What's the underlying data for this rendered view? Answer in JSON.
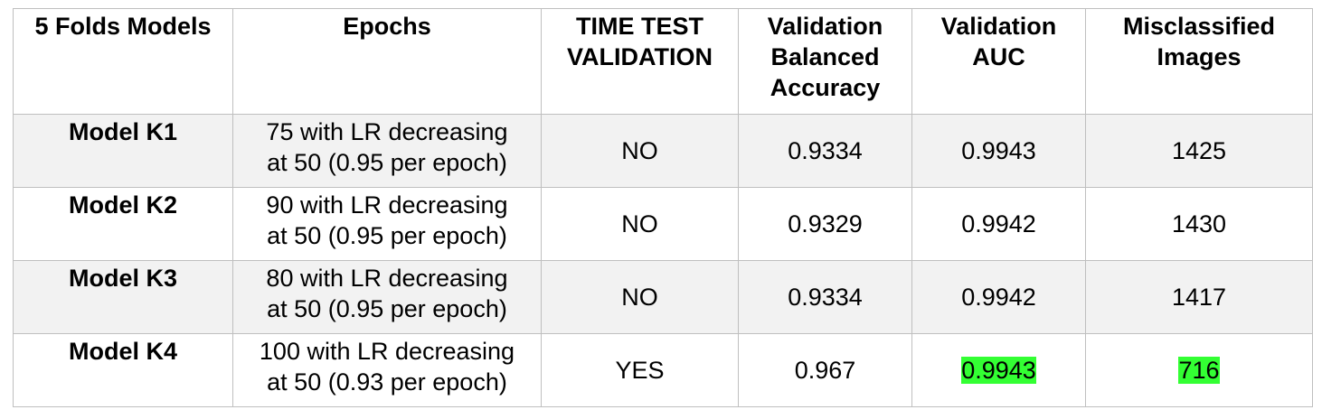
{
  "table": {
    "headers": [
      "5 Folds Models",
      "Epochs",
      "TIME TEST VALIDATION",
      "Validation Balanced Accuracy",
      "Validation AUC",
      "Misclassified Images"
    ],
    "rows": [
      {
        "model": "Model K1",
        "epochs_line1": "75 with LR decreasing",
        "epochs_line2": "at 50 (0.95 per epoch)",
        "time_test_validation": "NO",
        "balanced_accuracy": "0.9334",
        "auc": "0.9943",
        "misclassified": "1425"
      },
      {
        "model": "Model K2",
        "epochs_line1": "90 with LR decreasing",
        "epochs_line2": "at 50 (0.95 per epoch)",
        "time_test_validation": "NO",
        "balanced_accuracy": "0.9329",
        "auc": "0.9942",
        "misclassified": "1430"
      },
      {
        "model": "Model K3",
        "epochs_line1": "80 with LR decreasing",
        "epochs_line2": "at 50 (0.95 per epoch)",
        "time_test_validation": "NO",
        "balanced_accuracy": "0.9334",
        "auc": "0.9942",
        "misclassified": "1417"
      },
      {
        "model": "Model K4",
        "epochs_line1": "100 with LR decreasing",
        "epochs_line2": "at 50 (0.93 per epoch)",
        "time_test_validation": "YES",
        "balanced_accuracy": "0.967",
        "auc": "0.9943",
        "misclassified": "716"
      }
    ]
  },
  "colors": {
    "highlight": "#33ff33",
    "row_shade": "#f2f2f2",
    "border": "#bfbfbf"
  }
}
